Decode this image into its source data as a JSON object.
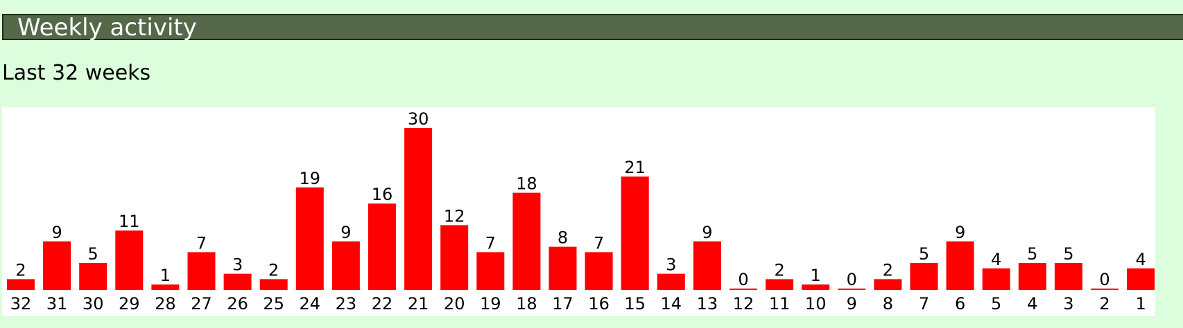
{
  "section": {
    "title": "Weekly activity"
  },
  "subtitle": "Last 32 weeks",
  "colors": {
    "bar": "#ff0000",
    "header_bg": "#55694a",
    "page_bg": "#dcfedc",
    "panel_bg": "#ffffff"
  },
  "chart_data": {
    "type": "bar",
    "categories": [
      "32",
      "31",
      "30",
      "29",
      "28",
      "27",
      "26",
      "25",
      "24",
      "23",
      "22",
      "21",
      "20",
      "19",
      "18",
      "17",
      "16",
      "15",
      "14",
      "13",
      "12",
      "11",
      "10",
      "9",
      "8",
      "7",
      "6",
      "5",
      "4",
      "3",
      "2",
      "1"
    ],
    "values": [
      2,
      9,
      5,
      11,
      1,
      7,
      3,
      2,
      19,
      9,
      16,
      30,
      12,
      7,
      18,
      8,
      7,
      21,
      3,
      9,
      0,
      2,
      1,
      0,
      2,
      5,
      9,
      4,
      5,
      5,
      0,
      4
    ],
    "data_labels": true,
    "grid": false,
    "ylim": [
      0,
      30
    ]
  }
}
